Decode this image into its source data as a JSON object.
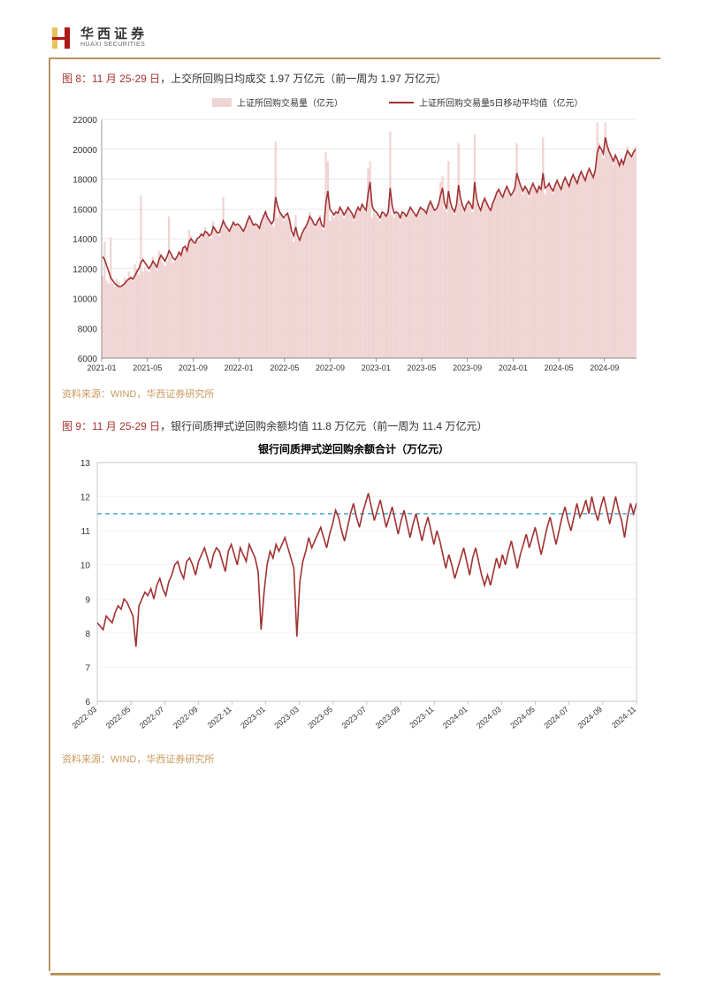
{
  "header": {
    "logo_cn": "华西证券",
    "logo_en": "HUAXI SECURITIES"
  },
  "fig8": {
    "title_prefix": "图 8：",
    "title_date": "11 月 25-29 日",
    "title_rest": "，上交所回购日均成交 1.97 万亿元（前一周为 1.97 万亿元）",
    "legend_bar": "上证所回购交易量（亿元）",
    "legend_line": "上证所回购交易量5日移动平均值（亿元）",
    "type": "bar+line",
    "ylim": [
      6000,
      22000
    ],
    "ytick_step": 2000,
    "x_labels": [
      "2021-01",
      "2021-05",
      "2021-09",
      "2022-01",
      "2022-05",
      "2022-09",
      "2023-01",
      "2023-05",
      "2023-09",
      "2024-01",
      "2024-05",
      "2024-09"
    ],
    "bar_color": "#f0d4d4",
    "line_color": "#a13232",
    "grid_color": "#d0d0d0",
    "background_color": "#ffffff",
    "source": "资料来源：WIND，华西证券研究所",
    "bars": [
      11500,
      13800,
      11200,
      11000,
      14100,
      11000,
      10800,
      11300,
      11100,
      10800,
      10900,
      11400,
      11200,
      11800,
      11500,
      11200,
      12300,
      12000,
      11600,
      16900,
      11800,
      12100,
      11900,
      11800,
      12200,
      12800,
      12400,
      11900,
      13200,
      12800,
      12400,
      12200,
      12500,
      15500,
      12800,
      12400,
      12600,
      12800,
      13100,
      12900,
      13300,
      13400,
      13200,
      14600,
      14200,
      13800,
      13600,
      14100,
      13900,
      14400,
      14200,
      14800,
      14500,
      14200,
      14000,
      15200,
      14800,
      14500,
      14200,
      14600,
      16800,
      14800,
      14600,
      14400,
      14800,
      15200,
      14800,
      15000,
      14800,
      14600,
      14400,
      14800,
      15200,
      15600,
      15200,
      14800,
      15000,
      14800,
      14600,
      15200,
      15600,
      15900,
      15400,
      15200,
      15000,
      14800,
      20500,
      15400,
      15800,
      15600,
      15200,
      15400,
      15800,
      15400,
      14200,
      13800,
      15600,
      14000,
      13800,
      14200,
      14600,
      14800,
      15200,
      15800,
      15400,
      15000,
      14800,
      15200,
      15600,
      14800,
      14600,
      19800,
      19200,
      15200,
      15600,
      15400,
      15800,
      15600,
      16200,
      15800,
      15400,
      15800,
      16200,
      15800,
      15600,
      15200,
      15800,
      16200,
      15800,
      16400,
      16000,
      15800,
      18700,
      19200,
      15400,
      15800,
      15600,
      15400,
      15200,
      15800,
      15600,
      15400,
      15800,
      21200,
      15600,
      15400,
      15800,
      15600,
      15200,
      15800,
      15600,
      15400,
      15800,
      16200,
      15800,
      15600,
      15400,
      15800,
      16200,
      16000,
      15800,
      15600,
      16200,
      16600,
      16200,
      15800,
      16000,
      16400,
      17800,
      18200,
      16000,
      15800,
      19200,
      16200,
      15800,
      15600,
      16200,
      20400,
      16400,
      16000,
      15800,
      16200,
      16600,
      16200,
      15800,
      21000,
      16400,
      16000,
      15800,
      16400,
      16800,
      16400,
      16000,
      15800,
      16400,
      16800,
      17200,
      17400,
      17000,
      16800,
      17200,
      17600,
      17200,
      16800,
      17000,
      17400,
      20400,
      17800,
      17400,
      17000,
      17600,
      17200,
      16800,
      17400,
      17800,
      17400,
      17000,
      17600,
      17200,
      20800,
      17000,
      17400,
      17800,
      17400,
      17000,
      17600,
      18000,
      17600,
      17200,
      17800,
      18200,
      17800,
      17400,
      18000,
      18400,
      18000,
      17600,
      18200,
      18600,
      18200,
      17800,
      18400,
      18800,
      18400,
      18000,
      18600,
      21800,
      20400,
      19800,
      19400,
      21800,
      20200,
      19800,
      19400,
      19000,
      19600,
      19200,
      18800,
      19400,
      19000,
      19600,
      20200,
      19800,
      19400,
      19800,
      20200
    ],
    "line": [
      12800,
      12600,
      12200,
      11800,
      11400,
      11200,
      11000,
      10900,
      10800,
      10800,
      10900,
      11000,
      11200,
      11300,
      11400,
      11300,
      11500,
      11800,
      12000,
      12400,
      12600,
      12400,
      12200,
      12000,
      12200,
      12500,
      12300,
      12100,
      12600,
      12900,
      12700,
      12500,
      12800,
      13200,
      13000,
      12700,
      12600,
      12800,
      13100,
      12900,
      13400,
      13500,
      13200,
      13800,
      14000,
      13800,
      13700,
      14000,
      14100,
      14300,
      14200,
      14500,
      14400,
      14200,
      14300,
      14800,
      14600,
      14400,
      14400,
      14800,
      15200,
      14900,
      14700,
      14500,
      14800,
      15100,
      14900,
      15000,
      14900,
      14700,
      14500,
      14800,
      15200,
      15500,
      15200,
      14900,
      15000,
      14900,
      14700,
      15200,
      15500,
      15800,
      15400,
      15200,
      15000,
      15200,
      16800,
      16200,
      15800,
      15600,
      15400,
      15600,
      15700,
      15200,
      14500,
      14200,
      14800,
      14200,
      13900,
      14300,
      14600,
      14800,
      15100,
      15500,
      15300,
      15000,
      14900,
      15200,
      15400,
      14900,
      14800,
      16400,
      17200,
      16000,
      15800,
      15600,
      15800,
      15700,
      16100,
      15900,
      15600,
      15800,
      16100,
      15900,
      15700,
      15400,
      15800,
      16100,
      15900,
      16300,
      16100,
      15900,
      17000,
      17800,
      16200,
      15900,
      15800,
      15600,
      15400,
      15800,
      15700,
      15500,
      15800,
      17400,
      16200,
      15700,
      15800,
      15700,
      15400,
      15800,
      15700,
      15500,
      15800,
      16100,
      15900,
      15700,
      15500,
      15800,
      16100,
      16000,
      15900,
      15700,
      16200,
      16500,
      16200,
      15900,
      16000,
      16300,
      16900,
      17400,
      16400,
      16000,
      17200,
      16400,
      16000,
      15800,
      16300,
      17600,
      16700,
      16200,
      15900,
      16300,
      16500,
      16300,
      16000,
      17800,
      16700,
      16200,
      15900,
      16400,
      16700,
      16400,
      16100,
      15900,
      16400,
      16700,
      17100,
      17300,
      17000,
      16800,
      17200,
      17500,
      17200,
      16900,
      17100,
      17400,
      18400,
      17900,
      17500,
      17200,
      17500,
      17300,
      17000,
      17400,
      17700,
      17400,
      17100,
      17500,
      17300,
      18400,
      17400,
      17500,
      17700,
      17400,
      17200,
      17600,
      17900,
      17600,
      17300,
      17800,
      18100,
      17800,
      17500,
      18000,
      18300,
      18000,
      17700,
      18200,
      18500,
      18200,
      17900,
      18400,
      18700,
      18400,
      18100,
      18600,
      19800,
      20200,
      20000,
      19700,
      20800,
      20200,
      19800,
      19500,
      19200,
      19600,
      19300,
      18900,
      19300,
      19000,
      19500,
      19900,
      19700,
      19500,
      19800,
      20000
    ]
  },
  "fig9": {
    "title_prefix": "图 9：",
    "title_date": "11 月 25-29 日",
    "title_rest": "，银行间质押式逆回购余额均值 11.8 万亿元（前一周为 11.4 万亿元）",
    "chart_title": "银行间质押式逆回购余额合计（万亿元）",
    "type": "line",
    "ylim": [
      6,
      13
    ],
    "ytick_step": 1,
    "x_labels": [
      "2022-03",
      "2022-05",
      "2022-07",
      "2022-09",
      "2022-11",
      "2023-01",
      "2023-03",
      "2023-05",
      "2023-07",
      "2023-09",
      "2023-11",
      "2024-01",
      "2024-03",
      "2024-05",
      "2024-07",
      "2024-09",
      "2024-11"
    ],
    "line_color": "#a13232",
    "ref_line_color": "#4aa8d8",
    "ref_line_value": 11.5,
    "grid_color": "#e8e8e8",
    "background_color": "#ffffff",
    "source": "资料来源：WIND，华西证券研究所",
    "line_data": [
      8.3,
      8.2,
      8.1,
      8.5,
      8.4,
      8.3,
      8.6,
      8.8,
      8.7,
      9.0,
      8.9,
      8.7,
      8.5,
      7.6,
      8.8,
      9.0,
      9.2,
      9.1,
      9.3,
      9.0,
      9.4,
      9.6,
      9.3,
      9.1,
      9.5,
      9.7,
      10.0,
      10.1,
      9.8,
      9.6,
      10.1,
      10.2,
      10.0,
      9.7,
      10.1,
      10.3,
      10.5,
      10.2,
      9.9,
      10.3,
      10.5,
      10.4,
      10.1,
      9.8,
      10.4,
      10.6,
      10.3,
      10.0,
      10.5,
      10.3,
      10.1,
      10.6,
      10.4,
      10.2,
      9.8,
      8.1,
      9.2,
      10.0,
      10.4,
      10.2,
      10.6,
      10.4,
      10.6,
      10.8,
      10.5,
      10.2,
      9.9,
      7.9,
      9.5,
      10.1,
      10.4,
      10.8,
      10.5,
      10.7,
      10.9,
      11.1,
      10.8,
      10.5,
      10.9,
      11.2,
      11.6,
      11.4,
      11.0,
      10.7,
      11.1,
      11.5,
      11.8,
      11.4,
      11.1,
      11.5,
      11.8,
      12.1,
      11.7,
      11.3,
      11.6,
      11.9,
      11.5,
      11.1,
      11.4,
      11.7,
      11.3,
      10.9,
      11.3,
      11.6,
      11.2,
      10.8,
      11.2,
      11.5,
      11.1,
      10.7,
      11.1,
      11.4,
      11.0,
      10.6,
      11.0,
      10.7,
      10.3,
      9.9,
      10.3,
      10.0,
      9.6,
      9.9,
      10.2,
      10.5,
      10.1,
      9.7,
      10.2,
      10.5,
      10.1,
      9.7,
      9.4,
      9.7,
      9.4,
      9.8,
      10.2,
      9.9,
      10.3,
      10.0,
      10.4,
      10.7,
      10.3,
      9.9,
      10.3,
      10.6,
      10.9,
      10.5,
      10.8,
      11.1,
      10.7,
      10.3,
      10.7,
      11.1,
      11.4,
      11.0,
      10.6,
      11.0,
      11.4,
      11.7,
      11.3,
      11.0,
      11.4,
      11.8,
      11.4,
      11.6,
      11.9,
      11.5,
      12.0,
      11.6,
      11.3,
      11.7,
      12.0,
      11.6,
      11.2,
      11.6,
      12.0,
      11.6,
      11.3,
      10.8,
      11.4,
      11.8,
      11.5,
      11.8
    ]
  }
}
